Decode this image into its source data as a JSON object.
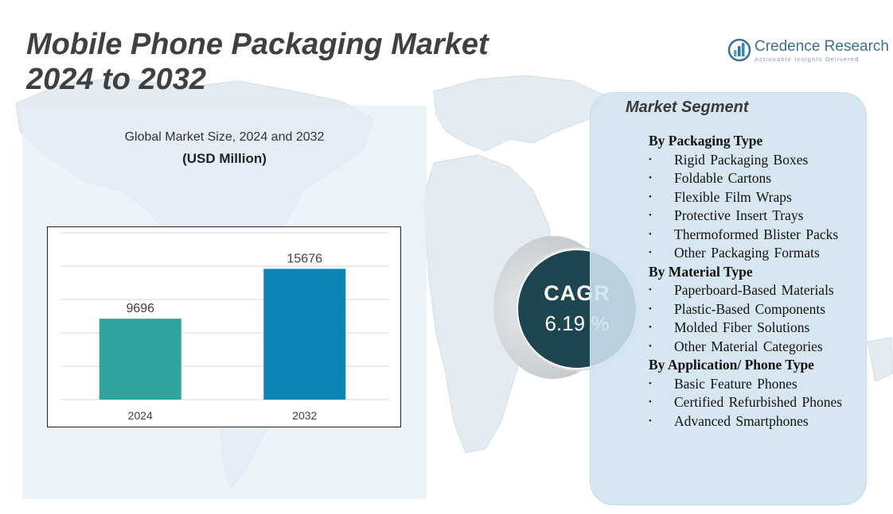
{
  "title": {
    "line1": "Mobile Phone Packaging Market",
    "line2": "2024 to 2032"
  },
  "logo": {
    "name": "Credence Research",
    "tagline": "Actionable Insights Delivered",
    "icon": "bar-chart-circle-icon"
  },
  "chart_data": {
    "type": "bar",
    "title": "Global Market Size, 2024 and 2032",
    "unit_label": "(USD Million)",
    "categories": [
      "2024",
      "2032"
    ],
    "values": [
      9696,
      15676
    ],
    "data_labels": [
      "9696",
      "15676"
    ],
    "ylim": [
      0,
      20000
    ],
    "grid": true,
    "colors": [
      "#2fa3a0",
      "#0c84b6"
    ]
  },
  "cagr": {
    "label": "CAGR",
    "value": "6.19 %"
  },
  "segments": {
    "heading": "Market Segment",
    "bullet": "•",
    "groups": [
      {
        "title": "By Packaging Type",
        "items": [
          "Rigid Packaging Boxes",
          "Foldable Cartons",
          "Flexible Film Wraps",
          "Protective Insert Trays",
          "Thermoformed Blister Packs",
          "Other Packaging Formats"
        ]
      },
      {
        "title": "By Material Type",
        "items": [
          "Paperboard-Based Materials",
          "Plastic-Based Components",
          "Molded Fiber Solutions",
          "Other Material Categories"
        ]
      },
      {
        "title": "By Application/ Phone Type",
        "items": [
          "Basic Feature Phones",
          "Certified Refurbished Phones",
          "Advanced Smartphones"
        ]
      }
    ]
  },
  "colors": {
    "title": "#404040",
    "cagr_circle": "#1e4651",
    "panel": "#d1e4f0",
    "map": "#dde7ee"
  }
}
